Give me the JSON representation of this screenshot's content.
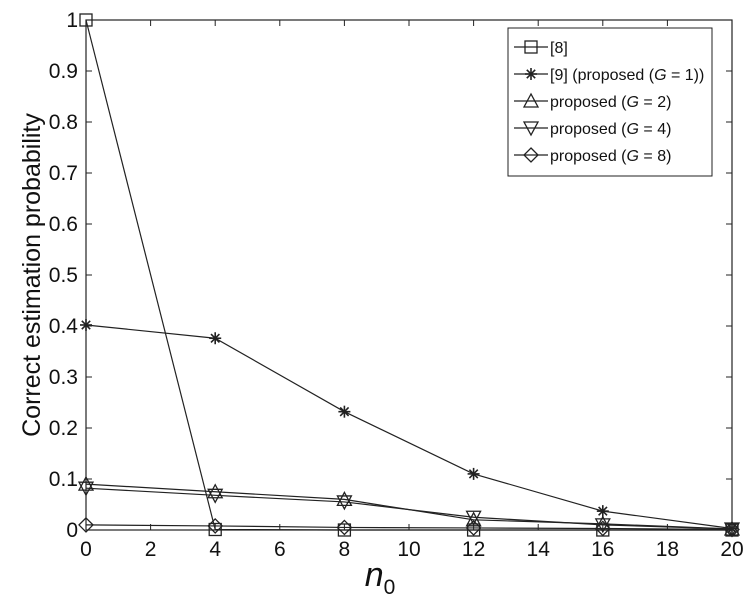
{
  "chart_data": {
    "type": "line",
    "title": "",
    "xlabel": "n",
    "xlabel_sub": "0",
    "ylabel": "Correct estimation probability",
    "xlim": [
      0,
      20
    ],
    "ylim": [
      0,
      1
    ],
    "xticks": [
      "0",
      "2",
      "4",
      "6",
      "8",
      "10",
      "12",
      "14",
      "16",
      "18",
      "20"
    ],
    "yticks": [
      "0",
      "0.1",
      "0.2",
      "0.3",
      "0.4",
      "0.5",
      "0.6",
      "0.7",
      "0.8",
      "0.9",
      "1"
    ],
    "grid": false,
    "legend_position": "top-right",
    "x": [
      0,
      4,
      8,
      12,
      16,
      20
    ],
    "series": [
      {
        "name": "[8]",
        "marker": "square",
        "values": [
          1.0,
          0.001,
          0.0,
          0.0,
          0.0,
          0.0
        ]
      },
      {
        "name": "[9] (proposed (G = 1))",
        "marker": "star",
        "values": [
          0.402,
          0.376,
          0.232,
          0.11,
          0.037,
          0.003
        ]
      },
      {
        "name": "proposed (G = 2)",
        "marker": "triangle-up",
        "values": [
          0.09,
          0.075,
          0.06,
          0.02,
          0.012,
          0.002
        ]
      },
      {
        "name": "proposed (G = 4)",
        "marker": "triangle-down",
        "values": [
          0.082,
          0.068,
          0.055,
          0.025,
          0.01,
          0.002
        ]
      },
      {
        "name": "proposed (G = 8)",
        "marker": "diamond",
        "values": [
          0.01,
          0.008,
          0.005,
          0.004,
          0.003,
          0.001
        ]
      }
    ],
    "legend": [
      {
        "parts": [
          "[8]"
        ]
      },
      {
        "parts": [
          "[9] (proposed (",
          "G",
          " = 1))"
        ]
      },
      {
        "parts": [
          "proposed (",
          "G",
          " = 2)"
        ]
      },
      {
        "parts": [
          "proposed (",
          "G",
          " = 4)"
        ]
      },
      {
        "parts": [
          "proposed (",
          "G",
          " = 8)"
        ]
      }
    ]
  }
}
